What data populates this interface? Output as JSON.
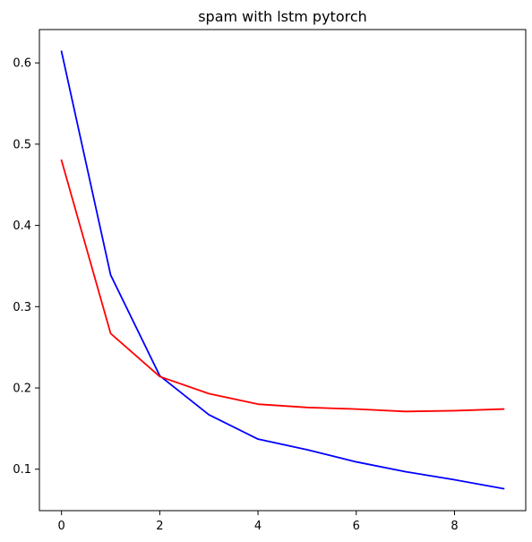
{
  "chart_data": {
    "type": "line",
    "title": "spam with lstm pytorch",
    "xlabel": "",
    "ylabel": "",
    "x": [
      0,
      1,
      2,
      3,
      4,
      5,
      6,
      7,
      8,
      9
    ],
    "series": [
      {
        "color": "#0000ff",
        "values": [
          0.614,
          0.339,
          0.215,
          0.167,
          0.137,
          0.124,
          0.109,
          0.097,
          0.087,
          0.076
        ]
      },
      {
        "color": "#ff0000",
        "values": [
          0.48,
          0.267,
          0.214,
          0.193,
          0.18,
          0.176,
          0.174,
          0.171,
          0.172,
          0.174
        ]
      }
    ],
    "xlim": [
      -0.45,
      9.45
    ],
    "ylim": [
      0.049,
      0.641
    ],
    "xticks": [
      0,
      2,
      4,
      6,
      8
    ],
    "xtick_labels": [
      "0",
      "2",
      "4",
      "6",
      "8"
    ],
    "yticks": [
      0.1,
      0.2,
      0.3,
      0.4,
      0.5,
      0.6
    ],
    "ytick_labels": [
      "0.1",
      "0.2",
      "0.3",
      "0.4",
      "0.5",
      "0.6"
    ],
    "grid": false,
    "legend": false
  }
}
